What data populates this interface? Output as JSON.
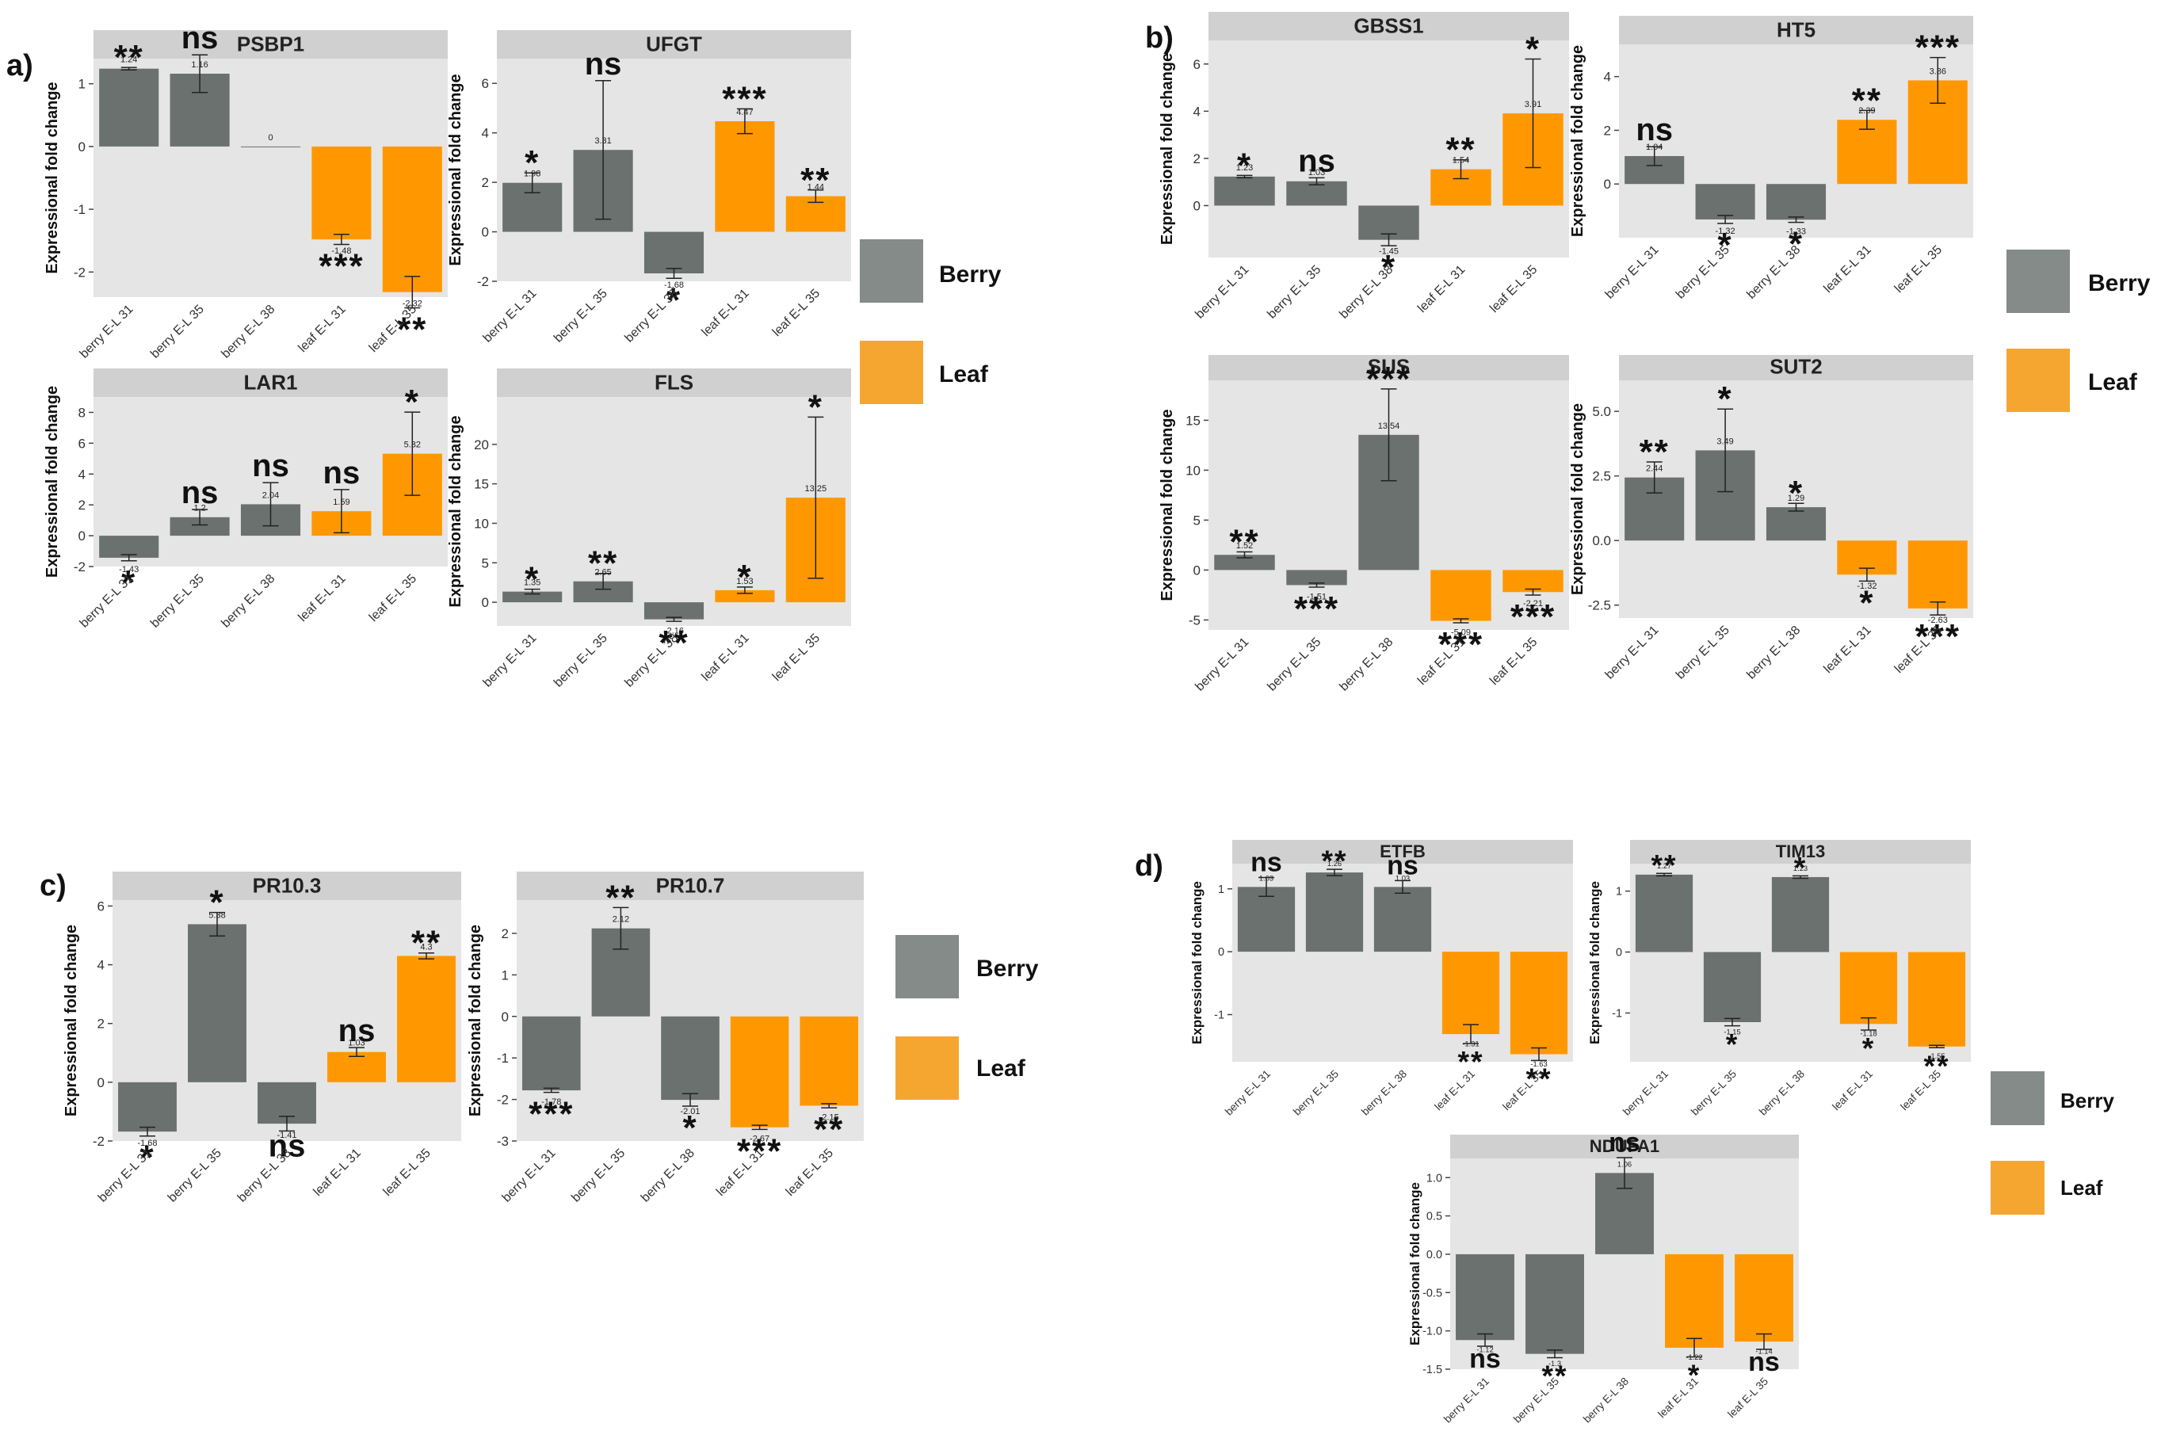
{
  "colors": {
    "berry": "#6b716e",
    "leaf": "#ff9800",
    "legend_berry": "#858b88",
    "legend_leaf": "#f5a631",
    "panel_bg": "#e5e5e5",
    "strip_bg": "#d0d0d0"
  },
  "y_axis_label": "Expressional fold change",
  "legend": {
    "berry": "Berry",
    "leaf": "Leaf"
  },
  "categories": [
    "berry E-L 31",
    "berry E-L 35",
    "berry E-L 38",
    "leaf E-L 31",
    "leaf E-L 35"
  ],
  "sections": [
    {
      "label": "a)"
    },
    {
      "label": "b)"
    },
    {
      "label": "c)"
    },
    {
      "label": "d)"
    }
  ],
  "chart_data": [
    {
      "type": "bar",
      "title": "PSBP1",
      "section": "a)",
      "ylim": [
        -2.4,
        1.4
      ],
      "yticks": [
        -2,
        -1,
        0,
        1
      ],
      "values": [
        1.24,
        1.16,
        0,
        -1.48,
        -2.32
      ],
      "labels": [
        "1.24",
        "1.16",
        "0",
        "-1.48",
        "-2.32"
      ],
      "errors": [
        0.02,
        0.3,
        0,
        0.08,
        0.25
      ],
      "sig": [
        "**",
        "ns",
        "",
        "***",
        "**"
      ]
    },
    {
      "type": "bar",
      "title": "UFGT",
      "section": "a)",
      "ylim": [
        -2,
        7
      ],
      "yticks": [
        -2,
        0,
        2,
        4,
        6
      ],
      "values": [
        1.98,
        3.31,
        -1.68,
        4.47,
        1.44
      ],
      "labels": [
        "1.98",
        "3.31",
        "-1.68",
        "4.47",
        "1.44"
      ],
      "errors": [
        0.4,
        2.8,
        0.2,
        0.5,
        0.25
      ],
      "sig": [
        "*",
        "ns",
        "*",
        "***",
        "**"
      ]
    },
    {
      "type": "bar",
      "title": "LAR1",
      "section": "a)",
      "ylim": [
        -2,
        9
      ],
      "yticks": [
        -2,
        0,
        2,
        4,
        6,
        8
      ],
      "values": [
        -1.43,
        1.2,
        2.04,
        1.59,
        5.32
      ],
      "labels": [
        "-1.43",
        "1.2",
        "2.04",
        "1.59",
        "5.32"
      ],
      "errors": [
        0.2,
        0.5,
        1.4,
        1.4,
        2.7
      ],
      "sig": [
        "*",
        "ns",
        "ns",
        "ns",
        "*"
      ]
    },
    {
      "type": "bar",
      "title": "FLS",
      "section": "a)",
      "ylim": [
        -3,
        26
      ],
      "yticks": [
        0,
        5,
        10,
        15,
        20
      ],
      "values": [
        1.35,
        2.65,
        -2.16,
        1.53,
        13.25
      ],
      "labels": [
        "1.35",
        "2.65",
        "-2.16",
        "1.53",
        "13.25"
      ],
      "errors": [
        0.3,
        1.0,
        0.25,
        0.4,
        10.2
      ],
      "sig": [
        "*",
        "**",
        "**",
        "*",
        "*"
      ]
    },
    {
      "type": "bar",
      "title": "GBSS1",
      "section": "b)",
      "ylim": [
        -2.2,
        7
      ],
      "yticks": [
        0,
        2,
        4,
        6
      ],
      "values": [
        1.23,
        1.03,
        -1.45,
        1.54,
        3.91
      ],
      "labels": [
        "1.23",
        "1.03",
        "-1.45",
        "1.54",
        "3.91"
      ],
      "errors": [
        0.05,
        0.15,
        0.25,
        0.4,
        2.3
      ],
      "sig": [
        "*",
        "ns",
        "*",
        "**",
        "*"
      ]
    },
    {
      "type": "bar",
      "title": "HT5",
      "section": "b)",
      "ylim": [
        -2,
        5.2
      ],
      "yticks": [
        0,
        2,
        4
      ],
      "values": [
        1.04,
        -1.32,
        -1.33,
        2.39,
        3.86
      ],
      "labels": [
        "1.04",
        "-1.32",
        "-1.33",
        "2.39",
        "3.86"
      ],
      "errors": [
        0.35,
        0.15,
        0.1,
        0.35,
        0.85
      ],
      "sig": [
        "ns",
        "*",
        "*",
        "**",
        "***"
      ]
    },
    {
      "type": "bar",
      "title": "SUS",
      "section": "b)",
      "ylim": [
        -6,
        19
      ],
      "yticks": [
        -5,
        0,
        5,
        10,
        15
      ],
      "values": [
        1.52,
        -1.51,
        13.54,
        -5.09,
        -2.21
      ],
      "labels": [
        "1.52",
        "-1.51",
        "13.54",
        "-5.09",
        "-2.21"
      ],
      "errors": [
        0.3,
        0.2,
        4.6,
        0.2,
        0.3
      ],
      "sig": [
        "**",
        "***",
        "***",
        "***",
        "***"
      ]
    },
    {
      "type": "bar",
      "title": "SUT2",
      "section": "b)",
      "ylim": [
        -3,
        6.2
      ],
      "yticks": [
        -2.5,
        0.0,
        2.5,
        5.0
      ],
      "values": [
        2.44,
        3.49,
        1.29,
        -1.32,
        -2.63
      ],
      "labels": [
        "2.44",
        "3.49",
        "1.29",
        "-1.32",
        "-2.63"
      ],
      "errors": [
        0.6,
        1.6,
        0.15,
        0.25,
        0.25
      ],
      "sig": [
        "**",
        "*",
        "*",
        "*",
        "***"
      ]
    },
    {
      "type": "bar",
      "title": "PR10.3",
      "section": "c)",
      "ylim": [
        -2,
        6.2
      ],
      "yticks": [
        -2,
        0,
        2,
        4,
        6
      ],
      "values": [
        -1.68,
        5.38,
        -1.41,
        1.03,
        4.3
      ],
      "labels": [
        "-1.68",
        "5.38",
        "-1.41",
        "1.03",
        "4.3"
      ],
      "errors": [
        0.15,
        0.4,
        0.25,
        0.15,
        0.1
      ],
      "sig": [
        "*",
        "*",
        "ns",
        "ns",
        "**"
      ]
    },
    {
      "type": "bar",
      "title": "PR10.7",
      "section": "c)",
      "ylim": [
        -3,
        2.8
      ],
      "yticks": [
        -3,
        -2,
        -1,
        0,
        1,
        2
      ],
      "values": [
        -1.78,
        2.12,
        -2.01,
        -2.67,
        -2.15
      ],
      "labels": [
        "-1.78",
        "2.12",
        "-2.01",
        "-2.67",
        "-2.15"
      ],
      "errors": [
        0.05,
        0.5,
        0.15,
        0.05,
        0.05
      ],
      "sig": [
        "***",
        "**",
        "*",
        "***",
        "**"
      ]
    },
    {
      "type": "bar",
      "title": "ETFB",
      "section": "d)",
      "ylim": [
        -1.75,
        1.4
      ],
      "yticks": [
        -1,
        0,
        1
      ],
      "values": [
        1.03,
        1.26,
        1.03,
        -1.31,
        -1.63
      ],
      "labels": [
        "1.03",
        "1.26",
        "1.03",
        "-1.31",
        "-1.63"
      ],
      "errors": [
        0.15,
        0.05,
        0.1,
        0.15,
        0.1
      ],
      "sig": [
        "ns",
        "**",
        "ns",
        "**",
        "**"
      ]
    },
    {
      "type": "bar",
      "title": "TIM13",
      "section": "d)",
      "ylim": [
        -1.8,
        1.45
      ],
      "yticks": [
        -1,
        0,
        1
      ],
      "values": [
        1.27,
        -1.15,
        1.23,
        -1.18,
        -1.55
      ],
      "labels": [
        "1.27",
        "-1.15",
        "1.23",
        "-1.18",
        "-1.55"
      ],
      "errors": [
        0.02,
        0.06,
        0.02,
        0.1,
        0.02
      ],
      "sig": [
        "**",
        "*",
        "*",
        "*",
        "**"
      ]
    },
    {
      "type": "bar",
      "title": "NDUFA1",
      "section": "d)",
      "ylim": [
        -1.5,
        1.25
      ],
      "yticks": [
        -1.5,
        -1.0,
        -0.5,
        0.0,
        0.5,
        1.0
      ],
      "ytick_labels": [
        "-1.5",
        "-1.0",
        "-0.5",
        "0.0",
        "0.5",
        "1.0"
      ],
      "values": [
        -1.12,
        -1.3,
        1.06,
        -1.22,
        -1.14
      ],
      "labels": [
        "-1.12",
        "-1.3",
        "1.06",
        "-1.22",
        "-1.14"
      ],
      "errors": [
        0.08,
        0.05,
        0.2,
        0.12,
        0.1
      ],
      "sig": [
        "ns",
        "**",
        "ns",
        "*",
        "ns"
      ]
    }
  ]
}
